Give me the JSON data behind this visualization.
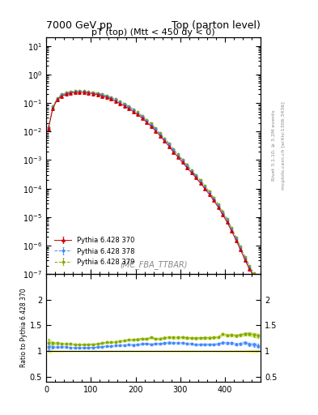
{
  "title_left": "7000 GeV pp",
  "title_right": "Top (parton level)",
  "main_title": "pT (top) (Mtt < 450 dy < 0)",
  "watermark": "(MC_FBA_TTBAR)",
  "right_label_top": "Rivet 3.1.10, ≥ 3.2M events",
  "right_label_bottom": "mcplots.cern.ch [arXiv:1306.3436]",
  "ylabel_ratio": "Ratio to Pythia 6.428 370",
  "xlim": [
    0,
    480
  ],
  "ylim_ratio": [
    0.4,
    2.5
  ],
  "series": [
    {
      "label": "Pythia 6.428 370",
      "color": "#cc0000",
      "marker": "^",
      "linestyle": "-",
      "x": [
        5,
        15,
        25,
        35,
        45,
        55,
        65,
        75,
        85,
        95,
        105,
        115,
        125,
        135,
        145,
        155,
        165,
        175,
        185,
        195,
        205,
        215,
        225,
        235,
        245,
        255,
        265,
        275,
        285,
        295,
        305,
        315,
        325,
        335,
        345,
        355,
        365,
        375,
        385,
        395,
        405,
        415,
        425,
        435,
        445,
        455,
        465,
        475
      ],
      "y": [
        0.012,
        0.065,
        0.13,
        0.175,
        0.2,
        0.22,
        0.235,
        0.24,
        0.235,
        0.225,
        0.21,
        0.195,
        0.175,
        0.155,
        0.135,
        0.115,
        0.096,
        0.079,
        0.063,
        0.05,
        0.039,
        0.029,
        0.021,
        0.015,
        0.0105,
        0.007,
        0.0046,
        0.003,
        0.0019,
        0.00125,
        0.00082,
        0.00054,
        0.00036,
        0.00024,
        0.000155,
        0.0001,
        6.2e-05,
        3.8e-05,
        2.2e-05,
        1.2e-05,
        6.5e-06,
        3.2e-06,
        1.5e-06,
        7e-07,
        3e-07,
        1.5e-07,
        8e-08,
        5e-08
      ],
      "yerr": [
        0.0005,
        0.001,
        0.0015,
        0.002,
        0.002,
        0.002,
        0.002,
        0.002,
        0.002,
        0.002,
        0.002,
        0.0018,
        0.0016,
        0.0014,
        0.0012,
        0.001,
        0.0009,
        0.0008,
        0.0006,
        0.0005,
        0.0004,
        0.0003,
        0.00022,
        0.00016,
        0.00011,
        7.5e-05,
        5e-05,
        3.3e-05,
        2.1e-05,
        1.4e-05,
        9e-06,
        6e-06,
        4e-06,
        2.6e-06,
        1.7e-06,
        1.1e-06,
        7e-07,
        4e-07,
        2.5e-07,
        1.4e-07,
        8e-08,
        4e-08,
        2e-08,
        1e-08,
        5e-09,
        3e-09,
        2e-09,
        1e-09
      ]
    },
    {
      "label": "Pythia 6.428 378",
      "color": "#4488ff",
      "marker": "*",
      "linestyle": "--",
      "x": [
        5,
        15,
        25,
        35,
        45,
        55,
        65,
        75,
        85,
        95,
        105,
        115,
        125,
        135,
        145,
        155,
        165,
        175,
        185,
        195,
        205,
        215,
        225,
        235,
        245,
        255,
        265,
        275,
        285,
        295,
        305,
        315,
        325,
        335,
        345,
        355,
        365,
        375,
        385,
        395,
        405,
        415,
        425,
        435,
        445,
        455,
        465,
        475
      ],
      "y": [
        0.013,
        0.07,
        0.14,
        0.19,
        0.215,
        0.235,
        0.25,
        0.255,
        0.25,
        0.24,
        0.225,
        0.21,
        0.19,
        0.17,
        0.148,
        0.127,
        0.107,
        0.088,
        0.071,
        0.056,
        0.044,
        0.033,
        0.024,
        0.017,
        0.012,
        0.008,
        0.0053,
        0.0035,
        0.0022,
        0.00145,
        0.00095,
        0.00062,
        0.00041,
        0.00027,
        0.000175,
        0.000113,
        7e-05,
        4.3e-05,
        2.5e-05,
        1.4e-05,
        7.5e-06,
        3.7e-06,
        1.7e-06,
        8e-07,
        3.5e-07,
        1.7e-07,
        9e-08,
        5.5e-08
      ],
      "yerr": [
        0.0006,
        0.0012,
        0.0016,
        0.002,
        0.002,
        0.002,
        0.002,
        0.002,
        0.002,
        0.002,
        0.002,
        0.0019,
        0.0017,
        0.0015,
        0.0013,
        0.0011,
        0.001,
        0.0009,
        0.0007,
        0.0006,
        0.00045,
        0.00035,
        0.00025,
        0.00018,
        0.00013,
        8.5e-05,
        5.6e-05,
        3.7e-05,
        2.4e-05,
        1.6e-05,
        1.05e-05,
        7e-06,
        4.5e-06,
        3e-06,
        2e-06,
        1.3e-06,
        8e-07,
        5e-07,
        3e-07,
        1.7e-07,
        1e-07,
        5e-08,
        2.5e-08,
        1.2e-08,
        6e-09,
        3e-09,
        2e-09,
        1.5e-09
      ]
    },
    {
      "label": "Pythia 6.428 379",
      "color": "#88aa00",
      "marker": "*",
      "linestyle": "--",
      "x": [
        5,
        15,
        25,
        35,
        45,
        55,
        65,
        75,
        85,
        95,
        105,
        115,
        125,
        135,
        145,
        155,
        165,
        175,
        185,
        195,
        205,
        215,
        225,
        235,
        245,
        255,
        265,
        275,
        285,
        295,
        305,
        315,
        325,
        335,
        345,
        355,
        365,
        375,
        385,
        395,
        405,
        415,
        425,
        435,
        445,
        455,
        465,
        475
      ],
      "y": [
        0.014,
        0.075,
        0.15,
        0.2,
        0.228,
        0.25,
        0.265,
        0.27,
        0.265,
        0.254,
        0.238,
        0.222,
        0.202,
        0.181,
        0.158,
        0.136,
        0.115,
        0.095,
        0.077,
        0.061,
        0.048,
        0.036,
        0.026,
        0.019,
        0.013,
        0.0087,
        0.0058,
        0.0038,
        0.0024,
        0.00158,
        0.00104,
        0.00068,
        0.000452,
        0.0003,
        0.000195,
        0.000126,
        7.8e-05,
        4.8e-05,
        2.8e-05,
        1.6e-05,
        8.5e-06,
        4.2e-06,
        1.95e-06,
        9.2e-07,
        4e-07,
        2e-07,
        1.05e-07,
        6.5e-08
      ],
      "yerr": [
        0.0007,
        0.0013,
        0.0018,
        0.0022,
        0.0023,
        0.0023,
        0.0023,
        0.0023,
        0.0023,
        0.0022,
        0.0021,
        0.002,
        0.0018,
        0.0016,
        0.0014,
        0.0012,
        0.0011,
        0.00095,
        0.00077,
        0.00062,
        0.00049,
        0.00037,
        0.00027,
        0.00019,
        0.00014,
        9.4e-05,
        6.2e-05,
        4.1e-05,
        2.7e-05,
        1.8e-05,
        1.2e-05,
        8e-06,
        5e-06,
        3.3e-06,
        2.2e-06,
        1.45e-06,
        9e-07,
        5.6e-07,
        3.3e-07,
        1.9e-07,
        1.1e-07,
        5.5e-08,
        2.7e-08,
        1.3e-08,
        6e-09,
        3.5e-09,
        2e-09,
        1.5e-09
      ]
    }
  ],
  "ref_band_color": "#eeee44",
  "ref_band_alpha": 0.5,
  "band1_color": "#aaccff",
  "band1_alpha": 0.5,
  "band2_color": "#bbdd44",
  "band2_alpha": 0.5,
  "background_color": "#ffffff",
  "dpi": 100,
  "figsize": [
    3.93,
    5.12
  ]
}
